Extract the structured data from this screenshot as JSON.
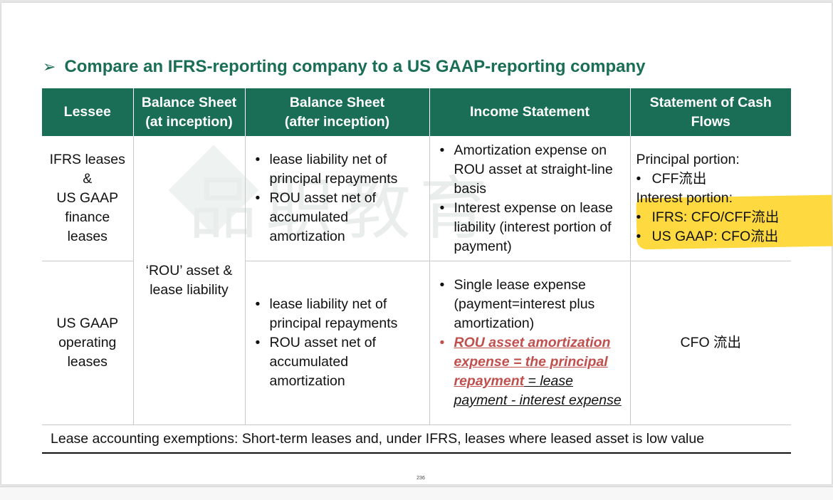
{
  "title": {
    "arrow": "➢",
    "text": "Compare an IFRS-reporting company to a US GAAP-reporting company"
  },
  "watermark": "品职教育",
  "table": {
    "headers": {
      "lessee": "Lessee",
      "bs_inception_1": "Balance Sheet",
      "bs_inception_2": "(at inception)",
      "bs_after_1": "Balance Sheet",
      "bs_after_2": "(after inception)",
      "income": "Income Statement",
      "cash_1": "Statement of Cash",
      "cash_2": "Flows"
    },
    "row1": {
      "lessee_lines": [
        "IFRS leases",
        "&",
        "US GAAP",
        "finance",
        "leases"
      ],
      "bs_after": [
        "lease liability net of principal repayments",
        "ROU asset net of accumulated amortization"
      ],
      "income": [
        "Amortization expense on ROU asset at straight-line basis",
        "Interest expense on lease liability (interest portion of payment)"
      ],
      "cash": {
        "principal_label": "Principal portion:",
        "principal_item": "CFF流出",
        "interest_label": "Interest portion:",
        "ifrs_item": "IFRS: CFO/CFF流出",
        "gaap_item": "US GAAP: CFO流出"
      }
    },
    "bs_inception_shared": [
      "‘ROU’ asset &",
      "lease liability"
    ],
    "row2": {
      "lessee_lines": [
        "US GAAP",
        "operating",
        "leases"
      ],
      "bs_after": [
        "lease liability net of principal repayments",
        "ROU asset net of accumulated amortization"
      ],
      "income_item1": "Single lease expense (payment=interest plus amortization)",
      "income_item2_red": "ROU asset amortization expense = the principal repayment",
      "income_item2_black": " = lease payment - interest expense",
      "cash": "CFO 流出"
    },
    "footer": "Lease accounting exemptions: Short-term leases and, under IFRS, leases where leased asset is low value"
  },
  "page_number": "236",
  "colors": {
    "header_green": "#1a6e55",
    "highlight_yellow": "#ffd21e",
    "red_text": "#c0504d"
  }
}
